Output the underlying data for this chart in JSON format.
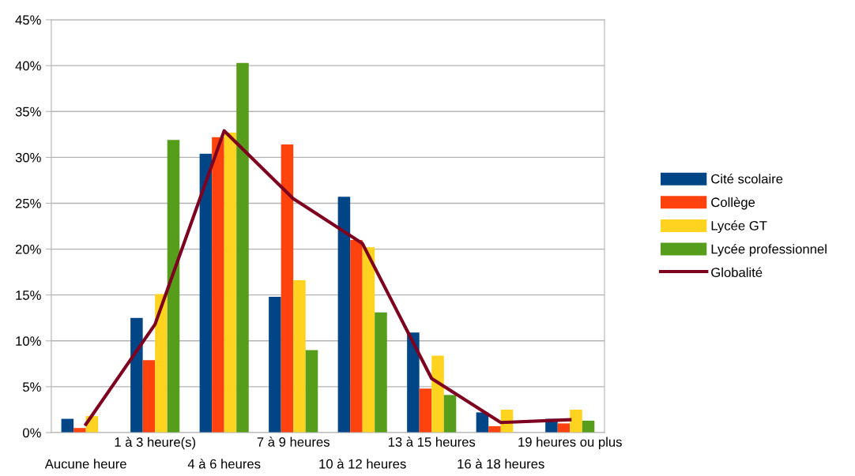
{
  "chart_data": {
    "type": "bar",
    "categories": [
      "Aucune heure",
      "1 à 3 heure(s)",
      "4 à 6 heures",
      "7 à 9 heures",
      "10 à 12 heures",
      "13 à 15 heures",
      "16 à 18 heures",
      "19 heures ou plus"
    ],
    "series": [
      {
        "name": "Cité scolaire",
        "color": "#004586",
        "values": [
          1.5,
          12.5,
          30.4,
          14.8,
          25.7,
          10.9,
          2.2,
          1.5
        ]
      },
      {
        "name": "Collège",
        "color": "#ff420e",
        "values": [
          0.5,
          7.9,
          32.2,
          31.4,
          21.0,
          4.8,
          0.7,
          1.0
        ]
      },
      {
        "name": "Lycée GT",
        "color": "#ffd320",
        "values": [
          1.8,
          15.1,
          32.7,
          16.6,
          20.2,
          8.4,
          2.5,
          2.5
        ]
      },
      {
        "name": "Lycée professionnel",
        "color": "#579d1c",
        "values": [
          0,
          31.9,
          40.3,
          9.0,
          13.1,
          4.1,
          0,
          1.3
        ]
      },
      {
        "name": "Globalité",
        "color": "#7e0021",
        "type": "line",
        "values": [
          0.9,
          11.8,
          32.9,
          25.5,
          20.6,
          5.9,
          1.1,
          1.4
        ]
      }
    ],
    "ylim": [
      0,
      45
    ],
    "yticks": [
      {
        "value": 0,
        "label": "0%"
      },
      {
        "value": 5,
        "label": "5%"
      },
      {
        "value": 10,
        "label": "10%"
      },
      {
        "value": 15,
        "label": "15%"
      },
      {
        "value": 20,
        "label": "20%"
      },
      {
        "value": 25,
        "label": "25%"
      },
      {
        "value": 30,
        "label": "30%"
      },
      {
        "value": 35,
        "label": "35%"
      },
      {
        "value": 40,
        "label": "40%"
      },
      {
        "value": 45,
        "label": "45%"
      }
    ],
    "grid": "y",
    "legend": "right"
  }
}
